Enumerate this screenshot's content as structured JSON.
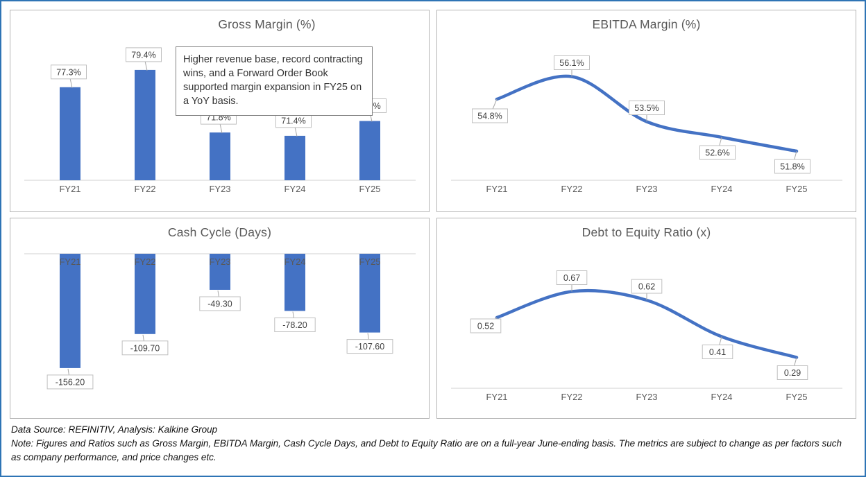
{
  "page": {
    "accent_color": "#4472C4",
    "border_color": "#2E74B5",
    "panel_border_color": "#B3B3B3",
    "title_color": "#595959",
    "callout_border_color": "#BFBFBF"
  },
  "annotation": {
    "text": "Higher revenue base, record contracting wins, and a Forward Order Book supported margin expansion in FY25 on a YoY basis."
  },
  "footer": {
    "source_line": "Data Source: REFINITIV, Analysis: Kalkine Group",
    "note_line": "Note: Figures and Ratios such as Gross Margin, EBITDA Margin, Cash Cycle Days, and Debt to Equity Ratio are on a full-year June-ending basis. The metrics are subject to change as per factors such as company performance, and price changes etc."
  },
  "chart_data": [
    {
      "id": "gross-margin",
      "type": "bar",
      "title": "Gross Margin (%)",
      "categories": [
        "FY21",
        "FY22",
        "FY23",
        "FY24",
        "FY25"
      ],
      "values": [
        77.3,
        79.4,
        71.8,
        71.4,
        73.2
      ],
      "labels": [
        "77.3%",
        "79.4%",
        "71.8%",
        "71.4%",
        "73.2%"
      ],
      "ylim": [
        66,
        82
      ],
      "axis": "bottom",
      "bar_color": "#4472C4",
      "xlabel": "",
      "ylabel": "",
      "grid": false,
      "legend": false
    },
    {
      "id": "ebitda-margin",
      "type": "line",
      "title": "EBITDA Margin (%)",
      "categories": [
        "FY21",
        "FY22",
        "FY23",
        "FY24",
        "FY25"
      ],
      "values": [
        54.8,
        56.1,
        53.5,
        52.6,
        51.8
      ],
      "labels": [
        "54.8%",
        "56.1%",
        "53.5%",
        "52.6%",
        "51.8%"
      ],
      "label_placement": [
        "below-left",
        "above",
        "above",
        "below",
        "below"
      ],
      "ylim": [
        51,
        57
      ],
      "line_color": "#4472C4",
      "xlabel": "",
      "ylabel": "",
      "grid": false,
      "legend": false
    },
    {
      "id": "cash-cycle",
      "type": "bar",
      "title": "Cash Cycle (Days)",
      "categories": [
        "FY21",
        "FY22",
        "FY23",
        "FY24",
        "FY25"
      ],
      "values": [
        -156.2,
        -109.7,
        -49.3,
        -78.2,
        -107.6
      ],
      "labels": [
        "-156.20",
        "-109.70",
        "-49.30",
        "-78.20",
        "-107.60"
      ],
      "ylim": [
        -180,
        0
      ],
      "axis": "top",
      "bar_color": "#4472C4",
      "xlabel": "",
      "ylabel": "",
      "grid": false,
      "legend": false
    },
    {
      "id": "debt-to-equity",
      "type": "line",
      "title": "Debt to Equity Ratio (x)",
      "categories": [
        "FY21",
        "FY22",
        "FY23",
        "FY24",
        "FY25"
      ],
      "values": [
        0.52,
        0.67,
        0.62,
        0.41,
        0.29
      ],
      "labels": [
        "0.52",
        "0.67",
        "0.62",
        "0.41",
        "0.29"
      ],
      "label_placement": [
        "left",
        "above",
        "above",
        "below",
        "below"
      ],
      "ylim": [
        0.2,
        0.8
      ],
      "line_color": "#4472C4",
      "xlabel": "",
      "ylabel": "",
      "grid": false,
      "legend": false
    }
  ]
}
